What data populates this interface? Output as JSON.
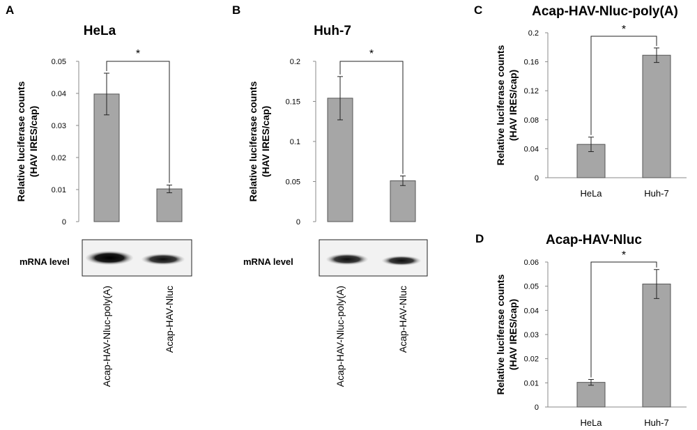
{
  "panels": {
    "a": {
      "letter": "A",
      "mrna_label": "mRNA level"
    },
    "b": {
      "letter": "B",
      "mrna_label": "mRNA level"
    },
    "c": {
      "letter": "C"
    },
    "d": {
      "letter": "D"
    }
  },
  "colors": {
    "bar": "#a6a6a6",
    "bar_stroke": "#555555",
    "axis": "#888888",
    "text": "#000000"
  },
  "chart_data": [
    {
      "panel": "A",
      "type": "bar",
      "title": "HeLa",
      "ylabel_lines": [
        "Relative luciferase counts",
        "(HAV IRES/cap)"
      ],
      "categories": [
        "Acap-HAV-Nluc-poly(A)",
        "Acap-HAV-Nluc"
      ],
      "values": [
        0.0398,
        0.0102
      ],
      "errors": [
        0.0065,
        0.0012
      ],
      "ylim": [
        0,
        0.05
      ],
      "yticks": [
        "0",
        "0.01",
        "0.02",
        "0.03",
        "0.04",
        "0.05"
      ],
      "significance": "*",
      "category_orientation": "vertical"
    },
    {
      "panel": "B",
      "type": "bar",
      "title": "Huh-7",
      "ylabel_lines": [
        "Relative luciferase counts",
        "(HAV IRES/cap)"
      ],
      "categories": [
        "Acap-HAV-Nluc-poly(A)",
        "Acap-HAV-Nluc"
      ],
      "values": [
        0.154,
        0.051
      ],
      "errors": [
        0.027,
        0.006
      ],
      "ylim": [
        0,
        0.2
      ],
      "yticks": [
        "0",
        "0.05",
        "0.1",
        "0.15",
        "0.2"
      ],
      "significance": "*",
      "category_orientation": "vertical"
    },
    {
      "panel": "C",
      "type": "bar",
      "title": "Acap-HAV-Nluc-poly(A)",
      "ylabel_lines": [
        "Relative luciferase counts",
        "(HAV IRES/cap)"
      ],
      "categories": [
        "HeLa",
        "Huh-7"
      ],
      "values": [
        0.046,
        0.169
      ],
      "errors": [
        0.01,
        0.01
      ],
      "ylim": [
        0,
        0.2
      ],
      "yticks": [
        "0",
        "0.04",
        "0.08",
        "0.12",
        "0.16",
        "0.2"
      ],
      "significance": "*",
      "category_orientation": "horizontal"
    },
    {
      "panel": "D",
      "type": "bar",
      "title": "Acap-HAV-Nluc",
      "ylabel_lines": [
        "Relative luciferase counts",
        "(HAV IRES/cap)"
      ],
      "categories": [
        "HeLa",
        "Huh-7"
      ],
      "values": [
        0.0102,
        0.0509
      ],
      "errors": [
        0.0012,
        0.006
      ],
      "ylim": [
        0,
        0.06
      ],
      "yticks": [
        "0",
        "0.01",
        "0.02",
        "0.03",
        "0.04",
        "0.05",
        "0.06"
      ],
      "significance": "*",
      "category_orientation": "horizontal"
    }
  ]
}
